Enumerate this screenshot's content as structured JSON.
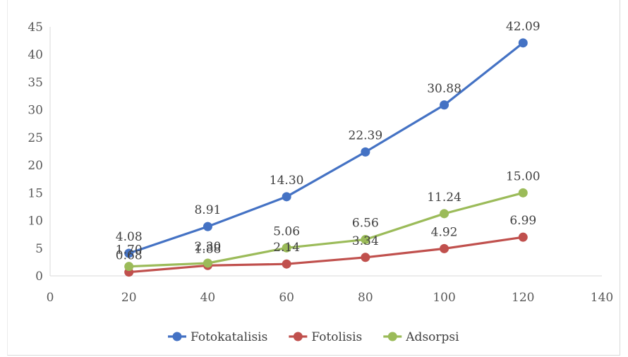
{
  "chart_data": {
    "type": "line",
    "title": "",
    "xlabel": "",
    "ylabel": "",
    "x": [
      20,
      40,
      60,
      80,
      100,
      120
    ],
    "xlim": [
      0,
      140
    ],
    "ylim": [
      0,
      45
    ],
    "xticks": [
      0,
      20,
      40,
      60,
      80,
      100,
      120,
      140
    ],
    "yticks": [
      0,
      5,
      10,
      15,
      20,
      25,
      30,
      35,
      40,
      45
    ],
    "grid": false,
    "legend_position": "bottom",
    "series": [
      {
        "name": "Fotokatalisis",
        "color": "#4472c4",
        "values": [
          4.08,
          8.91,
          14.3,
          22.39,
          30.88,
          42.09
        ],
        "labels": [
          "4.08",
          "8.91",
          "14.30",
          "22.39",
          "30.88",
          "42.09"
        ]
      },
      {
        "name": "Fotolisis",
        "color": "#c0504d",
        "values": [
          0.68,
          1.88,
          2.14,
          3.34,
          4.92,
          6.99
        ],
        "labels": [
          "0.68",
          "1.88",
          "2.14",
          "3.34",
          "4.92",
          "6.99"
        ]
      },
      {
        "name": "Adsorpsi",
        "color": "#9bbb59",
        "values": [
          1.7,
          2.3,
          5.06,
          6.56,
          11.24,
          15.0
        ],
        "labels": [
          "1.70",
          "2.30",
          "5.06",
          "6.56",
          "11.24",
          "15.00"
        ]
      }
    ]
  }
}
